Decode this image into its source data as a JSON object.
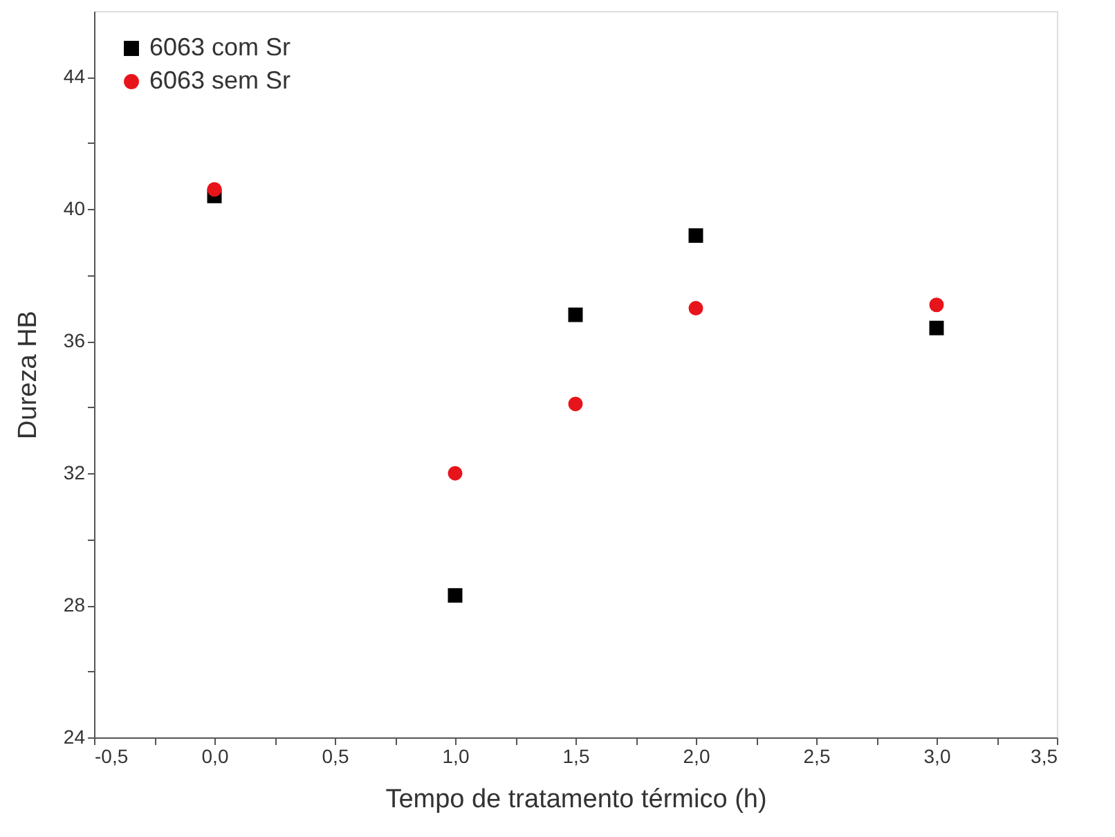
{
  "chart_data": {
    "type": "scatter",
    "xlabel": "Tempo de tratamento térmico (h)",
    "ylabel": "Dureza HB",
    "x": [
      0,
      1,
      1.5,
      2,
      3
    ],
    "series": [
      {
        "name": "6063 com Sr",
        "color": "#000000",
        "marker": "square",
        "values": [
          40.4,
          28.3,
          36.8,
          39.2,
          36.4
        ]
      },
      {
        "name": "6063 sem Sr",
        "color": "#e8141b",
        "marker": "circle",
        "values": [
          40.6,
          32.0,
          34.1,
          37.0,
          37.1
        ]
      }
    ],
    "xlim": [
      -0.5,
      3.5
    ],
    "xticks": [
      {
        "value": -0.5,
        "label": "-0,5"
      },
      {
        "value": -0.25,
        "label": null
      },
      {
        "value": 0,
        "label": "0,0"
      },
      {
        "value": 0.25,
        "label": null
      },
      {
        "value": 0.5,
        "label": "0,5"
      },
      {
        "value": 0.75,
        "label": null
      },
      {
        "value": 1,
        "label": "1,0"
      },
      {
        "value": 1.25,
        "label": null
      },
      {
        "value": 1.5,
        "label": "1,5"
      },
      {
        "value": 1.75,
        "label": null
      },
      {
        "value": 2,
        "label": "2,0"
      },
      {
        "value": 2.25,
        "label": null
      },
      {
        "value": 2.5,
        "label": "2,5"
      },
      {
        "value": 2.75,
        "label": null
      },
      {
        "value": 3,
        "label": "3,0"
      },
      {
        "value": 3.25,
        "label": null
      },
      {
        "value": 3.5,
        "label": "3,5"
      }
    ],
    "ylim": [
      24,
      46
    ],
    "yticks": [
      24,
      {
        "value": 26,
        "label": null
      },
      28,
      {
        "value": 30,
        "label": null
      },
      32,
      {
        "value": 34,
        "label": null
      },
      36,
      {
        "value": 38,
        "label": null
      },
      40,
      {
        "value": 42,
        "label": null
      },
      44
    ],
    "grid": false,
    "legend": "top left"
  }
}
